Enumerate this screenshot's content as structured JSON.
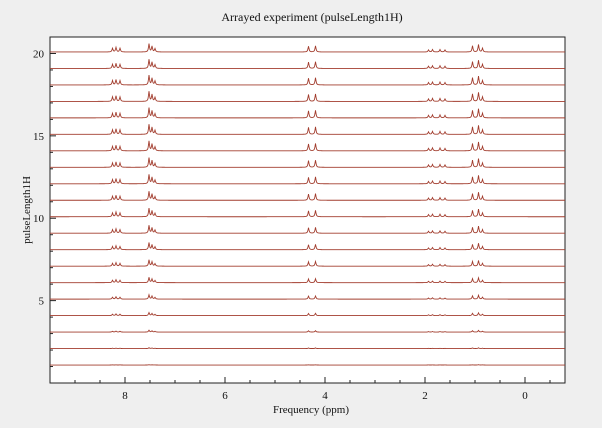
{
  "colors": {
    "background": "#efefef",
    "plot_background": "#ffffff",
    "trace": "#a23d2e",
    "axis": "#222222"
  },
  "chart_data": {
    "type": "line",
    "title": "Arrayed experiment (pulseLength1H)",
    "xlabel": "Frequency (ppm)",
    "ylabel": "pulseLength1H",
    "xlim": [
      9.5,
      -0.8
    ],
    "x_reversed": true,
    "ylim": [
      0,
      21
    ],
    "x_ticks": [
      8,
      6,
      4,
      2,
      0
    ],
    "x_tick_labels": [
      "8",
      "6",
      "4",
      "2",
      "0"
    ],
    "y_ticks": [
      5,
      10,
      15,
      20
    ],
    "y_tick_labels": [
      "5",
      "10",
      "15",
      "20"
    ],
    "grid": false,
    "trace_index": [
      1,
      2,
      3,
      4,
      5,
      6,
      7,
      8,
      9,
      10,
      11,
      12,
      13,
      14,
      15,
      16,
      17,
      18,
      19,
      20
    ],
    "peaks_ppm": [
      {
        "x": 8.25,
        "amp": 0.45
      },
      {
        "x": 8.18,
        "amp": 0.55
      },
      {
        "x": 8.1,
        "amp": 0.45
      },
      {
        "x": 7.52,
        "amp": 1.0
      },
      {
        "x": 7.46,
        "amp": 0.7
      },
      {
        "x": 7.4,
        "amp": 0.4
      },
      {
        "x": 4.33,
        "amp": 0.7
      },
      {
        "x": 4.19,
        "amp": 0.75
      },
      {
        "x": 1.93,
        "amp": 0.25
      },
      {
        "x": 1.85,
        "amp": 0.3
      },
      {
        "x": 1.7,
        "amp": 0.3
      },
      {
        "x": 1.6,
        "amp": 0.25
      },
      {
        "x": 1.05,
        "amp": 0.75
      },
      {
        "x": 0.93,
        "amp": 0.9
      },
      {
        "x": 0.85,
        "amp": 0.45
      }
    ],
    "trace_intensity": [
      0.03,
      0.08,
      0.18,
      0.3,
      0.42,
      0.52,
      0.62,
      0.7,
      0.78,
      0.84,
      0.88,
      0.92,
      0.95,
      0.97,
      0.99,
      1.0,
      0.99,
      0.96,
      0.9,
      0.82
    ]
  }
}
